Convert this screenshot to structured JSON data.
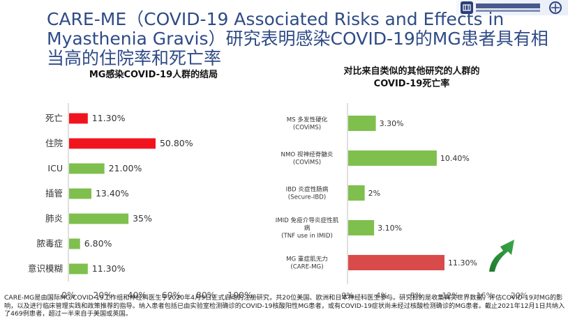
{
  "page": {
    "title": "CARE-ME（COVID-19 Associated Risks and Effects in Myasthenia Gravis）研究表明感染COVID-19的MG患者具有相当高的住院率和死亡率",
    "footnote": "CARE-MG是由国际MG/COVID-19工作组和神经科医生于2020年4月9日正式启动的注册研究，共20位美国、欧洲和日本神经科医生参与。研究目的是收集真实世界数据，评估COVID-19对MG的影响，以及进行临床管理实践和政策推荐的指导。纳入患者包括已由实验室检测确诊的COVID-19核酸阳性MG患者，或有COVID-19症状尚未经过核酸检测确诊的MG患者。截止2021年12月1日共纳入了469例患者，超过一半来自于美国或英国。"
  },
  "colors": {
    "red": "#f0141e",
    "green": "#7fbf4e",
    "dark_red": "#d94b4b",
    "title_blue": "#2e4b86",
    "arrow_green": "#2e8b3a"
  },
  "chart_data": [
    {
      "type": "bar",
      "orientation": "horizontal",
      "title": "MG感染COVID-19人群的结局",
      "categories": [
        "死亡",
        "住院",
        "ICU",
        "插管",
        "肺炎",
        "脓毒症",
        "意识模糊"
      ],
      "values": [
        11.3,
        50.8,
        21.0,
        13.4,
        35,
        6.8,
        11.3
      ],
      "value_labels": [
        "11.30%",
        "50.80%",
        "21.00%",
        "13.40%",
        "35%",
        "6.80%",
        "11.30%"
      ],
      "bar_colors": [
        "#f0141e",
        "#f0141e",
        "#7fbf4e",
        "#7fbf4e",
        "#7fbf4e",
        "#7fbf4e",
        "#7fbf4e"
      ],
      "xlim": [
        0,
        100
      ],
      "x_ticks": [
        "0%",
        "20%",
        "40%",
        "60%",
        "80%",
        "100%"
      ],
      "grid": false
    },
    {
      "type": "bar",
      "orientation": "horizontal",
      "title": "对比来自类似的其他研究的人群的COVID-19死亡率",
      "title_lines": [
        "对比来自类似的其他研究的人群的",
        "COVID-19死亡率"
      ],
      "categories": [
        [
          "MS 多发性硬化",
          "(COViMS)"
        ],
        [
          "NMO 视神经脊髓炎",
          "(COViMS)"
        ],
        [
          "IBD 炎症性肠病",
          "(Secure-IBD)"
        ],
        [
          "IMID 免疫介导炎症性肌",
          "病",
          "(TNF use in IMID)"
        ],
        [
          "MG 重症肌无力",
          "(CARE-MG)"
        ]
      ],
      "values": [
        3.3,
        10.4,
        2,
        3.1,
        11.3
      ],
      "value_labels": [
        "3.30%",
        "10.40%",
        "2%",
        "3.10%",
        "11.30%"
      ],
      "bar_colors": [
        "#7fbf4e",
        "#7fbf4e",
        "#7fbf4e",
        "#7fbf4e",
        "#d94b4b"
      ],
      "xlim": [
        0,
        20
      ],
      "x_ticks": [
        "0%",
        "4%",
        "8%",
        "12%",
        "16%",
        "20%"
      ],
      "grid": false
    }
  ]
}
